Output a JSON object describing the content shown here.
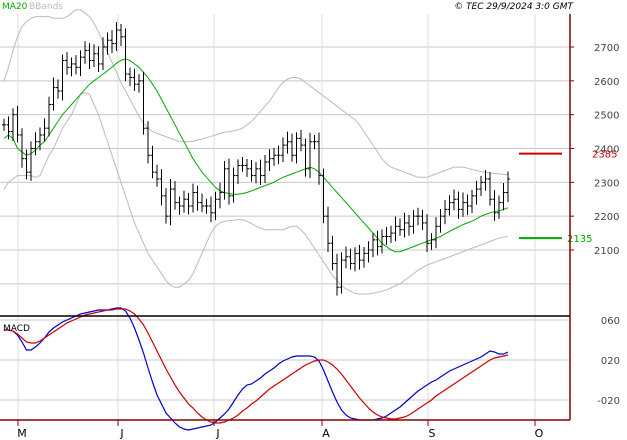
{
  "header": {
    "legend_ma": "MA20",
    "legend_bb": "BBands",
    "copyright": "© TEC 29/9/2024 3:0 GMT"
  },
  "colors": {
    "background": "#ffffff",
    "grid": "#c8c8c8",
    "frame": "#880000",
    "price_bar": "#000000",
    "ma": "#00aa00",
    "bbands": "#bbbbbb",
    "resistance": "#cc0000",
    "support": "#00aa00",
    "macd": "#0000cc",
    "signal": "#cc0000",
    "legend_ma": "#00aa00",
    "legend_bb": "#bbbbbb"
  },
  "chart_data": [
    {
      "type": "ohlc",
      "ylim": [
        2000,
        2800
      ],
      "yticks": [
        2100,
        2200,
        2300,
        2400,
        2500,
        2600,
        2700
      ],
      "ytick_labels": [
        "2100",
        "2200",
        "2300",
        "2400",
        "2500",
        "2600",
        "2700"
      ],
      "xticks": [
        "M",
        "J",
        "J",
        "A",
        "S",
        "O"
      ],
      "closes": [
        2470,
        2450,
        2500,
        2440,
        2370,
        2330,
        2400,
        2420,
        2440,
        2460,
        2530,
        2580,
        2570,
        2660,
        2640,
        2650,
        2640,
        2670,
        2690,
        2660,
        2680,
        2650,
        2700,
        2720,
        2710,
        2750,
        2730,
        2620,
        2610,
        2590,
        2600,
        2460,
        2380,
        2330,
        2310,
        2260,
        2200,
        2280,
        2240,
        2230,
        2250,
        2230,
        2270,
        2240,
        2230,
        2230,
        2210,
        2250,
        2270,
        2340,
        2260,
        2320,
        2350,
        2350,
        2340,
        2320,
        2340,
        2320,
        2360,
        2370,
        2380,
        2380,
        2410,
        2420,
        2380,
        2430,
        2410,
        2340,
        2420,
        2420,
        2320,
        2200,
        2120,
        2060,
        1990,
        2070,
        2080,
        2060,
        2090,
        2070,
        2090,
        2100,
        2130,
        2110,
        2140,
        2140,
        2150,
        2170,
        2160,
        2180,
        2170,
        2200,
        2200,
        2180,
        2120,
        2130,
        2170,
        2200,
        2220,
        2240,
        2250,
        2220,
        2240,
        2230,
        2260,
        2280,
        2300,
        2310,
        2250,
        2210,
        2240,
        2270,
        2310
      ],
      "ma20": [
        2430,
        2440,
        2430,
        2400,
        2390,
        2380,
        2385,
        2395,
        2410,
        2420,
        2440,
        2460,
        2480,
        2500,
        2515,
        2530,
        2545,
        2560,
        2575,
        2590,
        2600,
        2610,
        2620,
        2630,
        2640,
        2652,
        2660,
        2665,
        2660,
        2650,
        2640,
        2625,
        2610,
        2590,
        2570,
        2545,
        2520,
        2495,
        2470,
        2445,
        2420,
        2395,
        2370,
        2350,
        2330,
        2315,
        2300,
        2285,
        2275,
        2270,
        2267,
        2265,
        2265,
        2267,
        2270,
        2275,
        2280,
        2285,
        2290,
        2295,
        2300,
        2308,
        2315,
        2320,
        2325,
        2330,
        2335,
        2340,
        2345,
        2340,
        2330,
        2315,
        2300,
        2285,
        2270,
        2255,
        2240,
        2225,
        2210,
        2195,
        2180,
        2165,
        2150,
        2135,
        2120,
        2110,
        2100,
        2095,
        2095,
        2100,
        2105,
        2110,
        2115,
        2120,
        2125,
        2130,
        2135,
        2140,
        2148,
        2155,
        2162,
        2168,
        2175,
        2180,
        2185,
        2192,
        2200,
        2205,
        2210,
        2213,
        2216,
        2220,
        2225
      ],
      "bb_upper": [
        2600,
        2640,
        2690,
        2730,
        2760,
        2775,
        2785,
        2790,
        2790,
        2790,
        2790,
        2785,
        2785,
        2785,
        2790,
        2800,
        2810,
        2810,
        2800,
        2790,
        2770,
        2745,
        2715,
        2685,
        2655,
        2625,
        2595,
        2570,
        2545,
        2520,
        2495,
        2475,
        2460,
        2450,
        2445,
        2440,
        2435,
        2430,
        2425,
        2420,
        2420,
        2420,
        2422,
        2425,
        2428,
        2432,
        2436,
        2440,
        2444,
        2448,
        2450,
        2452,
        2455,
        2460,
        2470,
        2480,
        2495,
        2510,
        2525,
        2540,
        2560,
        2580,
        2595,
        2605,
        2610,
        2610,
        2605,
        2595,
        2585,
        2575,
        2565,
        2555,
        2545,
        2535,
        2525,
        2515,
        2505,
        2495,
        2485,
        2470,
        2450,
        2430,
        2410,
        2390,
        2370,
        2355,
        2345,
        2340,
        2335,
        2330,
        2325,
        2320,
        2315,
        2315,
        2315,
        2320,
        2325,
        2330,
        2335,
        2340,
        2345,
        2345,
        2345,
        2342,
        2338,
        2335,
        2332,
        2330,
        2328,
        2326,
        2325,
        2324,
        2323
      ],
      "bb_lower": [
        2280,
        2300,
        2310,
        2320,
        2320,
        2320,
        2320,
        2315,
        2320,
        2350,
        2380,
        2400,
        2430,
        2460,
        2480,
        2500,
        2530,
        2560,
        2565,
        2560,
        2530,
        2500,
        2460,
        2420,
        2380,
        2340,
        2300,
        2260,
        2220,
        2180,
        2150,
        2120,
        2090,
        2070,
        2050,
        2030,
        2010,
        1995,
        1990,
        1990,
        2000,
        2010,
        2030,
        2060,
        2090,
        2120,
        2150,
        2170,
        2180,
        2185,
        2187,
        2188,
        2190,
        2190,
        2185,
        2178,
        2170,
        2165,
        2160,
        2160,
        2160,
        2160,
        2160,
        2165,
        2170,
        2170,
        2160,
        2145,
        2125,
        2105,
        2085,
        2065,
        2045,
        2025,
        2010,
        1995,
        1985,
        1978,
        1972,
        1970,
        1970,
        1970,
        1972,
        1975,
        1978,
        1982,
        1988,
        1995,
        2000,
        2010,
        2020,
        2030,
        2040,
        2048,
        2055,
        2060,
        2065,
        2070,
        2075,
        2080,
        2085,
        2090,
        2095,
        2100,
        2105,
        2110,
        2115,
        2120,
        2125,
        2130,
        2135,
        2138,
        2140
      ],
      "resistance": {
        "value": 2385,
        "label": "2385"
      },
      "support": {
        "value": 2135,
        "label": "2135"
      }
    },
    {
      "type": "line",
      "title": "MACD",
      "ylim": [
        -60,
        80
      ],
      "yticks": [
        60,
        20,
        -20
      ],
      "ytick_labels": [
        "060",
        "020",
        "-020"
      ],
      "series": [
        {
          "key": "macd",
          "values": [
            50,
            50,
            49,
            45,
            38,
            30,
            30,
            33,
            37,
            42,
            48,
            52,
            55,
            58,
            60,
            62,
            64,
            66,
            67,
            68,
            69,
            70,
            70,
            70,
            71,
            72,
            72,
            69,
            62,
            52,
            40,
            27,
            12,
            -2,
            -15,
            -24,
            -33,
            -38,
            -43,
            -47,
            -49,
            -50,
            -49,
            -48,
            -47,
            -46,
            -45,
            -42,
            -38,
            -34,
            -29,
            -22,
            -15,
            -9,
            -5,
            -4,
            -1,
            2,
            6,
            9,
            12,
            16,
            19,
            21,
            23,
            24,
            24,
            24,
            24,
            23,
            19,
            10,
            -1,
            -12,
            -22,
            -30,
            -35,
            -38,
            -39,
            -40,
            -40,
            -40,
            -40,
            -39,
            -38,
            -36,
            -33,
            -30,
            -27,
            -23,
            -19,
            -15,
            -11,
            -8,
            -5,
            -2,
            0,
            3,
            6,
            9,
            11,
            13,
            15,
            17,
            19,
            21,
            23,
            26,
            29,
            28,
            26,
            26,
            28
          ]
        },
        {
          "key": "signal",
          "values": [
            50,
            50,
            49,
            46,
            42,
            38,
            37,
            37,
            39,
            42,
            45,
            48,
            51,
            54,
            57,
            59,
            61,
            63,
            65,
            66,
            67,
            68,
            69,
            70,
            70,
            71,
            71,
            71,
            69,
            66,
            61,
            55,
            47,
            38,
            29,
            20,
            11,
            3,
            -5,
            -12,
            -18,
            -24,
            -28,
            -33,
            -37,
            -40,
            -42,
            -43,
            -43,
            -42,
            -40,
            -38,
            -35,
            -31,
            -28,
            -24,
            -21,
            -17,
            -13,
            -9,
            -6,
            -3,
            0,
            3,
            6,
            9,
            12,
            15,
            17,
            19,
            20,
            20,
            18,
            15,
            11,
            6,
            0,
            -6,
            -12,
            -18,
            -23,
            -28,
            -32,
            -35,
            -37,
            -38,
            -39,
            -39,
            -38,
            -37,
            -35,
            -32,
            -29,
            -26,
            -23,
            -20,
            -16,
            -13,
            -10,
            -7,
            -4,
            -1,
            2,
            5,
            8,
            11,
            14,
            17,
            20,
            22,
            23,
            24,
            25
          ]
        }
      ]
    }
  ]
}
